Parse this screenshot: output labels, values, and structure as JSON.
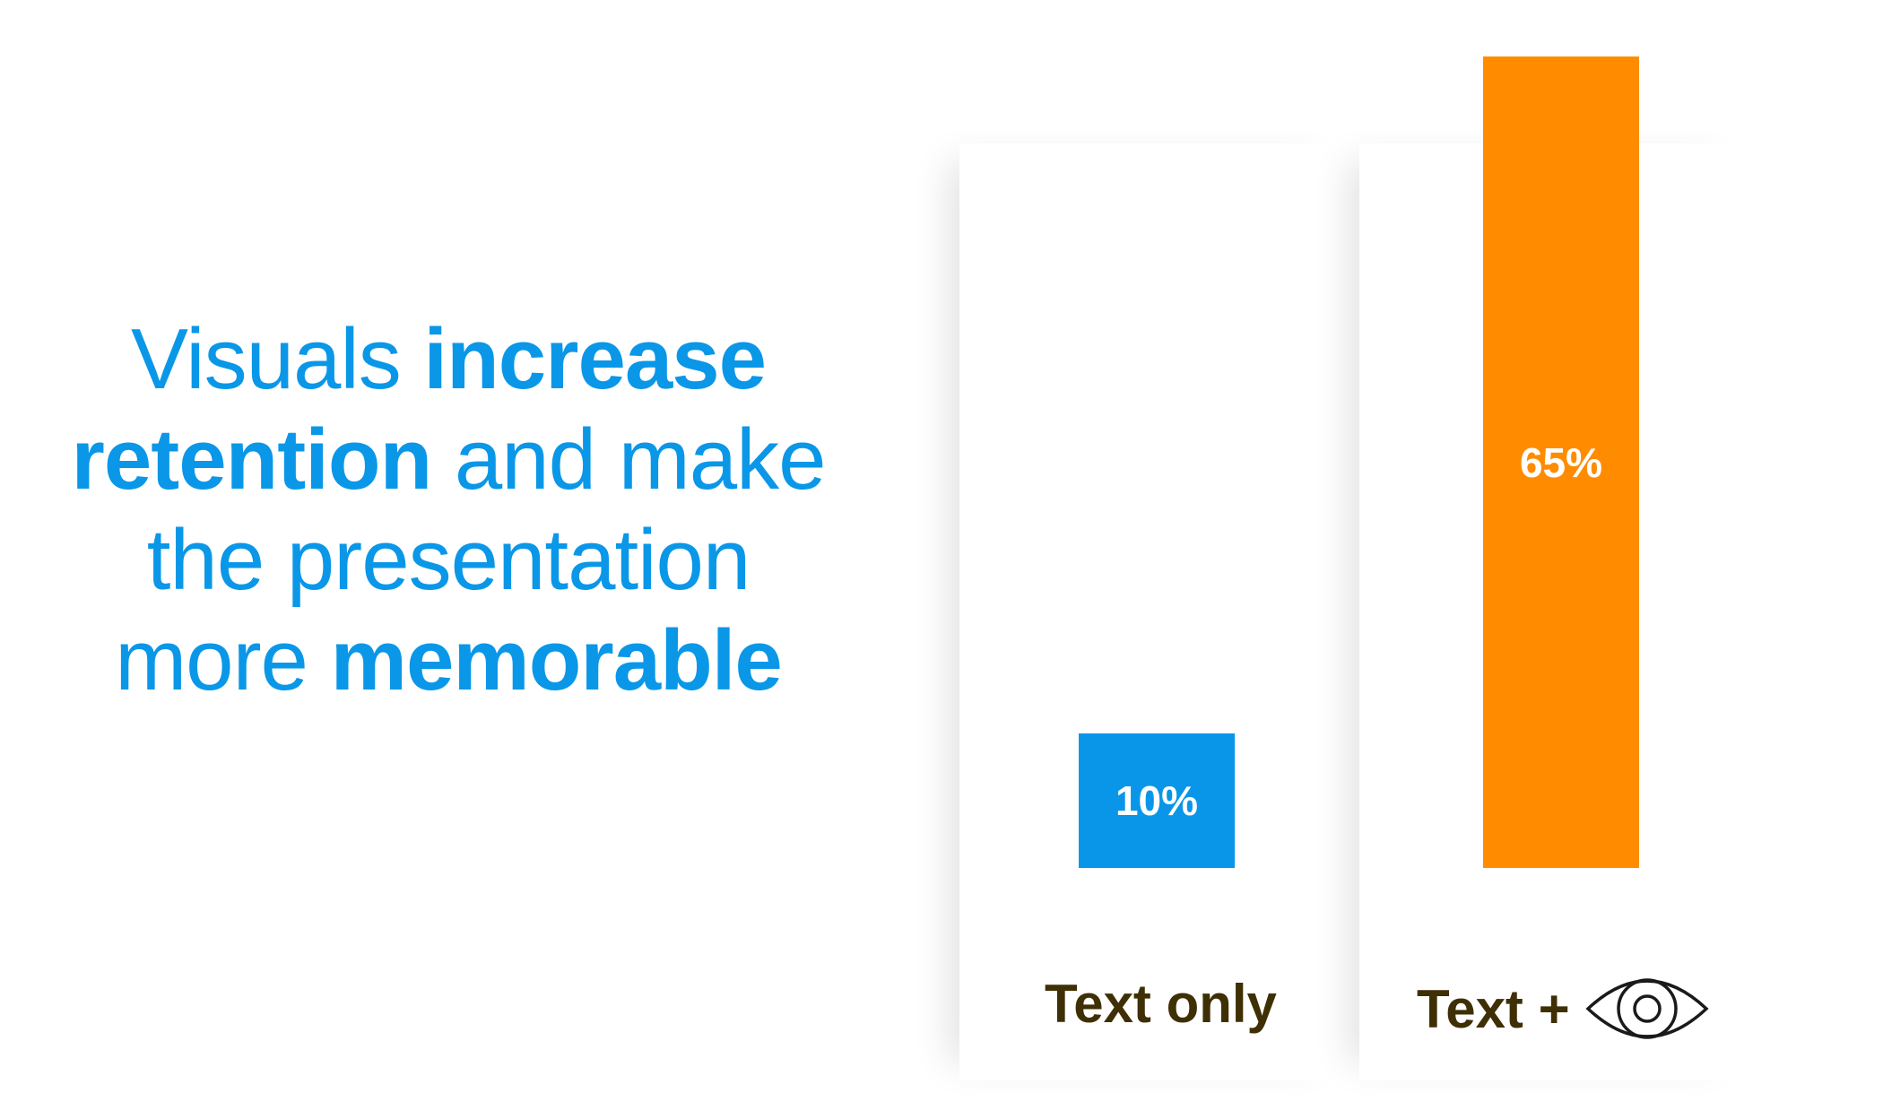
{
  "headline": {
    "parts": [
      "Visuals ",
      "increase retention",
      " and make the presentation more ",
      "memorable"
    ]
  },
  "chart_data": {
    "type": "bar",
    "categories": [
      "Text only",
      "Text + [eye icon]"
    ],
    "category_labels": [
      "Text only",
      "Text +"
    ],
    "values": [
      10,
      65
    ],
    "data_labels": [
      "10%",
      "65%"
    ],
    "colors": [
      "#0996e8",
      "#ff8c00"
    ],
    "label_color": "#3f2f05",
    "category_icons": [
      null,
      "eye-icon"
    ],
    "grid": false,
    "ylim": [
      0,
      65
    ]
  }
}
